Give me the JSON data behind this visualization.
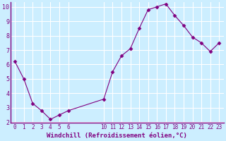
{
  "x": [
    0,
    1,
    2,
    3,
    4,
    5,
    6,
    10,
    11,
    12,
    13,
    14,
    15,
    16,
    17,
    18,
    19,
    20,
    21,
    22,
    23
  ],
  "y": [
    6.2,
    5.0,
    3.3,
    2.8,
    2.2,
    2.5,
    2.8,
    3.6,
    5.5,
    6.6,
    7.1,
    8.5,
    9.8,
    10.0,
    10.2,
    9.4,
    8.7,
    7.9,
    7.5,
    6.9,
    7.5
  ],
  "line_color": "#800080",
  "marker_color": "#800080",
  "bg_color": "#cceeff",
  "grid_color": "#ffffff",
  "xlabel": "Windchill (Refroidissement éolien,°C)",
  "xlabel_color": "#800080",
  "tick_color": "#800080",
  "spine_color": "#800080",
  "ylim": [
    2,
    10
  ],
  "xlim": [
    -0.5,
    23.5
  ],
  "yticks": [
    2,
    3,
    4,
    5,
    6,
    7,
    8,
    9,
    10
  ],
  "xticks": [
    0,
    1,
    2,
    3,
    4,
    5,
    6,
    10,
    11,
    12,
    13,
    14,
    15,
    16,
    17,
    18,
    19,
    20,
    21,
    22,
    23
  ],
  "xlabel_fontsize": 6.5,
  "tick_fontsize": 5.5
}
